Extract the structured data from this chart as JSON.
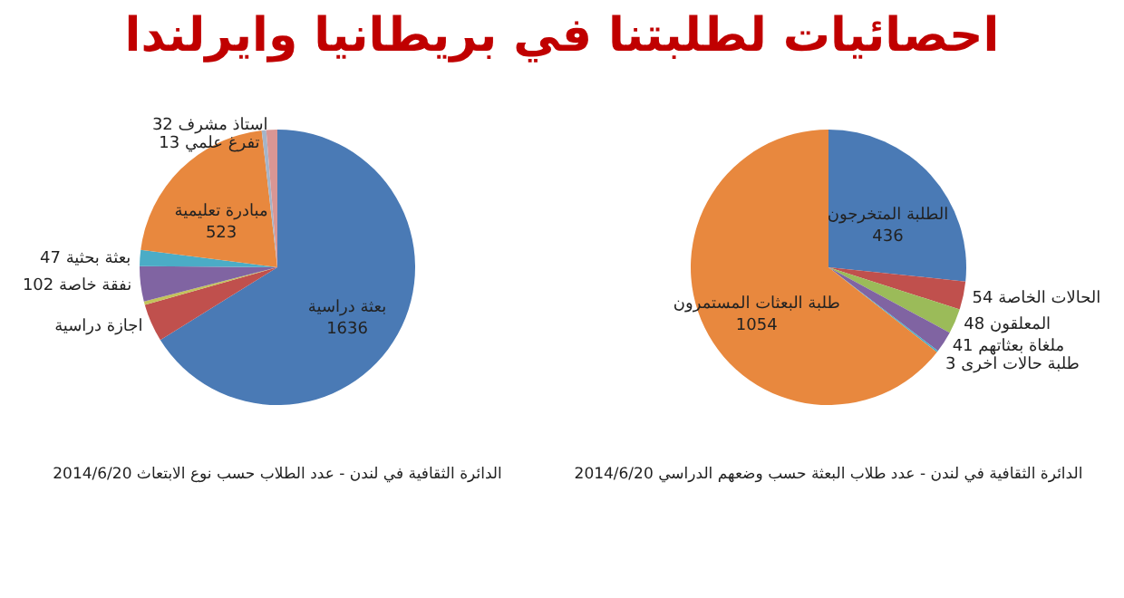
{
  "chart_data": [
    {
      "type": "pie",
      "title": "الدائرة الثقافية في لندن - عدد الطلاب حسب نوع الابتعاث 2014/6/20",
      "annotations": [
        "احصائيات لطلبتنا في بريطانيا وايرلندا"
      ],
      "categories": [
        "بعثة دراسية",
        "اجازة دراسية",
        null,
        "نفقة خاصة",
        "بعثة بحثية",
        "مبادرة تعليمية",
        "تفرغ علمي",
        "استاذ مشرف"
      ],
      "values": [
        1636,
        110,
        10,
        102,
        47,
        523,
        13,
        32
      ],
      "value_labels": [
        "1636",
        null,
        null,
        "102",
        "47",
        "523",
        "13",
        "32"
      ],
      "colors": [
        "#4a7ab5",
        "#c0504d",
        "#c3c35a",
        "#8064a2",
        "#4bacc6",
        "#e8883e",
        "#a5b4c8",
        "#d99694"
      ]
    },
    {
      "type": "pie",
      "title": "الدائرة الثقافية في لندن - عدد طلاب البعثة حسب وضعهم الدراسي 2014/6/20",
      "categories": [
        "الطلبة المتخرجون",
        "الحالات الخاصة",
        "المعلقون",
        "ملغاة بعثاتهم",
        "طلبة حالات اخرى",
        "طلبة البعثات المستمرون"
      ],
      "values": [
        436,
        54,
        48,
        41,
        3,
        1054
      ],
      "value_labels": [
        "436",
        "54",
        "48",
        "41",
        "3",
        "1054"
      ],
      "colors": [
        "#4a7ab5",
        "#c0504d",
        "#9bbb59",
        "#8064a2",
        "#4bacc6",
        "#e8883e"
      ]
    }
  ]
}
